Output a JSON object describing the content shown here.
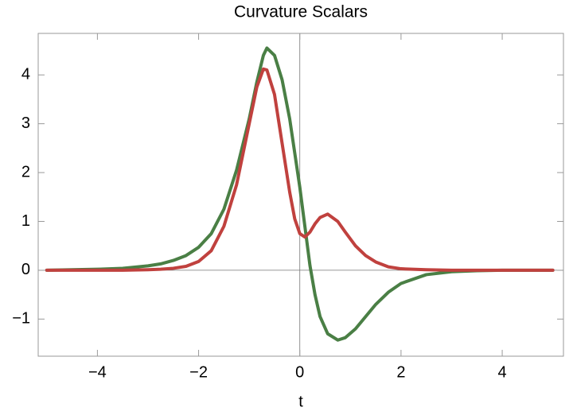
{
  "chart_data": {
    "type": "line",
    "title": "Curvature Scalars",
    "x_label": "t",
    "x": [
      -5,
      -4.5,
      -4,
      -3.5,
      -3,
      -2.75,
      -2.5,
      -2.25,
      -2,
      -1.75,
      -1.5,
      -1.25,
      -1,
      -0.85,
      -0.72,
      -0.65,
      -0.5,
      -0.35,
      -0.2,
      -0.1,
      0,
      0.1,
      0.2,
      0.3,
      0.4,
      0.55,
      0.75,
      0.9,
      1.1,
      1.3,
      1.5,
      1.75,
      2,
      2.5,
      3,
      3.5,
      4,
      4.5,
      5
    ],
    "series": [
      {
        "color": "#4a7f45",
        "values": [
          0,
          0.01,
          0.02,
          0.04,
          0.09,
          0.13,
          0.2,
          0.3,
          0.47,
          0.75,
          1.25,
          2.05,
          3.1,
          3.85,
          4.4,
          4.55,
          4.4,
          3.9,
          3.1,
          2.4,
          1.7,
          0.9,
          0.1,
          -0.5,
          -0.95,
          -1.3,
          -1.43,
          -1.38,
          -1.2,
          -0.95,
          -0.7,
          -0.45,
          -0.27,
          -0.09,
          -0.03,
          -0.01,
          0,
          0,
          0
        ]
      },
      {
        "color": "#c0413e",
        "values": [
          0,
          0,
          0,
          0,
          0.01,
          0.02,
          0.04,
          0.08,
          0.18,
          0.4,
          0.9,
          1.75,
          3.0,
          3.75,
          4.12,
          4.1,
          3.6,
          2.6,
          1.6,
          1.05,
          0.75,
          0.68,
          0.78,
          0.95,
          1.08,
          1.15,
          1.0,
          0.78,
          0.5,
          0.3,
          0.17,
          0.07,
          0.03,
          0.01,
          0,
          0,
          0,
          0,
          0
        ]
      }
    ],
    "xlim": [
      -5.17,
      5.21
    ],
    "ylim": [
      -1.76,
      4.85
    ],
    "xticks": [
      {
        "value": -4,
        "label": "−4"
      },
      {
        "value": -2,
        "label": "−2"
      },
      0,
      2,
      4
    ],
    "yticks": [
      {
        "value": -1,
        "label": "−1"
      },
      0,
      1,
      2,
      3,
      4
    ]
  }
}
